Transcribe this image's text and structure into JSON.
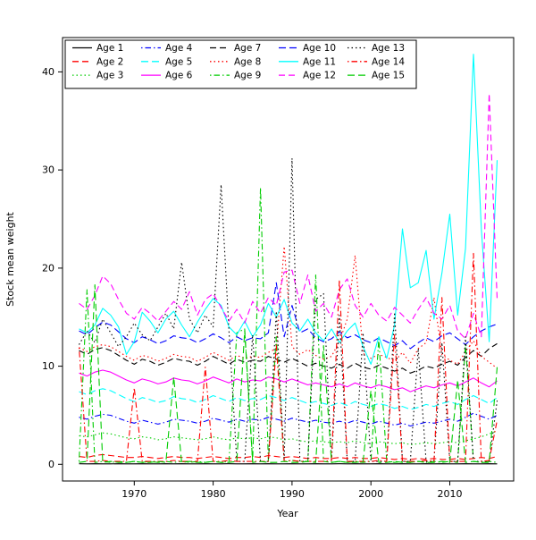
{
  "chart_data": {
    "type": "line",
    "title": "",
    "xlabel": "Year",
    "ylabel": "Stock mean weight",
    "xlim": [
      1960.9,
      2018.1
    ],
    "ylim": [
      -1.7,
      43.5
    ],
    "x_ticks": [
      1970,
      1980,
      1990,
      2000,
      2010
    ],
    "y_ticks": [
      0,
      10,
      20,
      30,
      40
    ],
    "grid": false,
    "legend_position": "top-left",
    "legend_columns": 5,
    "years": [
      1963,
      1964,
      1965,
      1966,
      1967,
      1968,
      1969,
      1970,
      1971,
      1972,
      1973,
      1974,
      1975,
      1976,
      1977,
      1978,
      1979,
      1980,
      1981,
      1982,
      1983,
      1984,
      1985,
      1986,
      1987,
      1988,
      1989,
      1990,
      1991,
      1992,
      1993,
      1994,
      1995,
      1996,
      1997,
      1998,
      1999,
      2000,
      2001,
      2002,
      2003,
      2004,
      2005,
      2006,
      2007,
      2008,
      2009,
      2010,
      2011,
      2012,
      2013,
      2014,
      2015,
      2016
    ],
    "series": [
      {
        "name": "Age 1",
        "color": "#000000",
        "linestyle": "solid",
        "values": [
          0.06,
          0.05,
          0.06,
          0.05,
          0.05,
          0.06,
          0.05,
          0.05,
          0.06,
          0.05,
          0.05,
          0.06,
          0.05,
          0.06,
          0.05,
          0.05,
          0.06,
          0.05,
          0.05,
          0.06,
          0.05,
          0.05,
          0.06,
          0.05,
          0.06,
          0.05,
          0.05,
          0.06,
          0.05,
          0.05,
          0.06,
          0.05,
          0.05,
          0.06,
          0.05,
          0.06,
          0.05,
          0.05,
          0.06,
          0.05,
          0.05,
          0.06,
          0.05,
          0.05,
          0.06,
          0.05,
          0.06,
          0.05,
          0.05,
          0.06,
          0.05,
          0.05,
          0.06,
          0.05
        ]
      },
      {
        "name": "Age 2",
        "color": "#FF0000",
        "linestyle": "dashed",
        "values": [
          0.8,
          0.7,
          0.9,
          1.0,
          0.9,
          0.8,
          0.7,
          0.7,
          0.8,
          0.7,
          0.6,
          0.7,
          0.8,
          0.7,
          0.7,
          0.6,
          0.7,
          0.8,
          0.7,
          0.6,
          0.7,
          0.7,
          0.8,
          0.7,
          0.9,
          0.8,
          0.7,
          0.8,
          0.7,
          0.6,
          0.7,
          0.6,
          0.6,
          0.7,
          0.6,
          0.7,
          0.6,
          0.6,
          0.7,
          0.6,
          0.5,
          0.6,
          0.5,
          0.6,
          0.5,
          0.6,
          0.5,
          0.5,
          0.6,
          0.5,
          0.6,
          0.7,
          0.6,
          0.8
        ]
      },
      {
        "name": "Age 3",
        "color": "#00CC00",
        "linestyle": "dotted",
        "values": [
          2.9,
          2.8,
          3.0,
          3.2,
          3.1,
          2.9,
          2.7,
          2.6,
          2.8,
          2.7,
          2.5,
          2.6,
          2.8,
          2.7,
          2.6,
          2.5,
          2.6,
          2.8,
          2.6,
          2.5,
          2.7,
          2.6,
          2.7,
          2.6,
          2.8,
          2.7,
          2.5,
          2.6,
          2.4,
          2.3,
          2.4,
          2.3,
          2.2,
          2.3,
          2.2,
          2.4,
          2.2,
          2.1,
          2.3,
          2.2,
          2.1,
          2.2,
          2.0,
          2.1,
          2.2,
          2.1,
          2.2,
          2.3,
          2.2,
          2.4,
          2.6,
          2.8,
          3.1,
          3.4
        ]
      },
      {
        "name": "Age 4",
        "color": "#0000FF",
        "linestyle": "dashdot",
        "values": [
          4.8,
          4.6,
          4.9,
          5.1,
          5.0,
          4.7,
          4.4,
          4.2,
          4.5,
          4.3,
          4.1,
          4.3,
          4.6,
          4.5,
          4.4,
          4.2,
          4.4,
          4.7,
          4.5,
          4.3,
          4.6,
          4.4,
          4.6,
          4.5,
          4.8,
          4.6,
          4.4,
          4.7,
          4.5,
          4.3,
          4.5,
          4.3,
          4.2,
          4.4,
          4.2,
          4.5,
          4.3,
          4.1,
          4.4,
          4.2,
          4.0,
          4.2,
          3.9,
          4.1,
          4.3,
          4.2,
          4.4,
          4.6,
          4.4,
          4.8,
          5.2,
          4.9,
          4.6,
          5.0
        ]
      },
      {
        "name": "Age 5",
        "color": "#00FFFF",
        "linestyle": "longdash",
        "values": [
          7.4,
          7.1,
          7.5,
          7.7,
          7.5,
          7.1,
          6.7,
          6.4,
          6.8,
          6.6,
          6.3,
          6.5,
          6.9,
          6.7,
          6.6,
          6.3,
          6.6,
          7.0,
          6.7,
          6.4,
          6.8,
          6.5,
          6.7,
          6.6,
          7.0,
          6.8,
          6.5,
          6.8,
          6.5,
          6.2,
          6.4,
          6.2,
          6.0,
          6.3,
          6.0,
          6.4,
          6.1,
          5.9,
          6.2,
          6.0,
          5.7,
          5.9,
          5.6,
          5.8,
          6.1,
          5.9,
          6.2,
          6.4,
          6.1,
          6.6,
          7.0,
          6.6,
          6.2,
          6.8
        ]
      },
      {
        "name": "Age 6",
        "color": "#FF00FF",
        "linestyle": "solid",
        "values": [
          9.3,
          9.0,
          9.4,
          9.6,
          9.4,
          9.0,
          8.6,
          8.3,
          8.7,
          8.5,
          8.2,
          8.4,
          8.8,
          8.6,
          8.5,
          8.2,
          8.5,
          8.9,
          8.6,
          8.3,
          8.7,
          8.4,
          8.6,
          8.5,
          8.9,
          8.7,
          8.4,
          8.7,
          8.4,
          8.1,
          8.3,
          8.1,
          7.9,
          8.2,
          7.9,
          8.3,
          8.0,
          7.8,
          8.1,
          7.9,
          7.6,
          7.8,
          7.4,
          7.7,
          8.0,
          7.8,
          8.1,
          8.3,
          8.0,
          8.4,
          8.8,
          8.3,
          7.9,
          8.5
        ]
      },
      {
        "name": "Age 7",
        "color": "#000000",
        "linestyle": "dashed",
        "values": [
          11.6,
          11.2,
          11.7,
          11.9,
          11.6,
          11.1,
          10.6,
          10.2,
          10.7,
          10.5,
          10.1,
          10.4,
          10.8,
          10.6,
          10.5,
          10.1,
          10.5,
          11.0,
          10.6,
          10.2,
          10.7,
          10.4,
          10.6,
          10.5,
          11.0,
          10.7,
          10.4,
          10.8,
          10.4,
          10.0,
          10.3,
          10.0,
          9.8,
          10.2,
          9.8,
          10.3,
          9.9,
          9.7,
          10.1,
          9.8,
          9.5,
          9.8,
          9.3,
          9.6,
          10.0,
          9.8,
          10.2,
          10.5,
          10.1,
          10.9,
          11.6,
          11.0,
          11.8,
          12.3
        ]
      },
      {
        "name": "Age 8",
        "color": "#FF0000",
        "linestyle": "dotted",
        "values": [
          11.9,
          11.5,
          12.0,
          12.2,
          12.0,
          11.5,
          11.0,
          10.6,
          11.1,
          10.9,
          10.5,
          10.8,
          11.2,
          11.0,
          10.9,
          10.5,
          10.9,
          11.4,
          11.0,
          10.6,
          11.1,
          10.8,
          11.0,
          10.9,
          11.4,
          11.8,
          22.2,
          12.0,
          11.2,
          11.7,
          11.1,
          10.7,
          11.0,
          12.5,
          14.8,
          21.3,
          11.3,
          10.8,
          11.2,
          10.9,
          10.5,
          11.4,
          10.3,
          11.8,
          12.4,
          17.0,
          11.2,
          10.6,
          10.2,
          11.5,
          12.6,
          11.0,
          10.4,
          9.8
        ]
      },
      {
        "name": "Age 9",
        "color": "#00CC00",
        "linestyle": "dashdot",
        "values": [
          0.3,
          17.8,
          0.2,
          0.3,
          0.2,
          0.3,
          0.2,
          0.3,
          0.2,
          0.3,
          0.2,
          0.3,
          0.2,
          0.3,
          0.2,
          0.3,
          0.2,
          0.3,
          0.2,
          0.3,
          13.4,
          13.8,
          0.3,
          28.2,
          0.3,
          13.0,
          0.3,
          0.4,
          0.3,
          0.3,
          19.3,
          0.3,
          0.2,
          0.3,
          0.2,
          0.3,
          0.2,
          0.3,
          12.8,
          0.3,
          0.2,
          0.3,
          0.2,
          0.3,
          0.2,
          0.3,
          0.2,
          0.3,
          0.2,
          12.2,
          0.3,
          0.2,
          0.3,
          0.2
        ]
      },
      {
        "name": "Age 10",
        "color": "#0000FF",
        "linestyle": "longdash",
        "values": [
          13.6,
          13.2,
          13.9,
          14.5,
          14.2,
          13.5,
          12.8,
          12.4,
          13.0,
          12.7,
          12.3,
          12.6,
          13.1,
          12.9,
          12.8,
          12.4,
          12.8,
          13.3,
          12.9,
          12.4,
          13.0,
          12.6,
          12.9,
          12.8,
          13.4,
          18.5,
          13.0,
          16.2,
          13.4,
          13.8,
          12.9,
          12.5,
          12.8,
          13.5,
          12.9,
          13.2,
          12.7,
          12.4,
          12.9,
          12.5,
          12.1,
          12.6,
          11.8,
          12.4,
          12.9,
          12.5,
          13.1,
          13.4,
          12.8,
          12.2,
          13.0,
          13.6,
          14.0,
          14.3
        ]
      },
      {
        "name": "Age 11",
        "color": "#00FFFF",
        "linestyle": "solid",
        "values": [
          13.8,
          13.4,
          14.2,
          15.9,
          15.2,
          14.0,
          11.2,
          12.5,
          15.5,
          14.6,
          13.4,
          14.8,
          15.6,
          14.2,
          13.0,
          14.5,
          15.8,
          16.9,
          16.2,
          14.0,
          13.2,
          14.6,
          13.0,
          14.2,
          16.4,
          15.0,
          16.8,
          14.4,
          13.6,
          14.8,
          13.4,
          12.6,
          13.8,
          12.4,
          13.6,
          14.4,
          12.0,
          10.2,
          13.0,
          10.8,
          14.2,
          24.0,
          18.0,
          18.5,
          21.8,
          14.8,
          19.5,
          25.5,
          15.2,
          22.0,
          41.8,
          24.0,
          12.5,
          31.0
        ]
      },
      {
        "name": "Age 12",
        "color": "#FF00FF",
        "linestyle": "dashed",
        "values": [
          16.4,
          15.8,
          17.2,
          19.2,
          18.4,
          16.8,
          15.4,
          14.8,
          16.0,
          15.4,
          14.6,
          15.6,
          16.6,
          15.8,
          17.6,
          15.2,
          16.8,
          17.4,
          16.0,
          14.6,
          15.8,
          14.4,
          16.6,
          15.4,
          17.0,
          16.2,
          19.6,
          19.8,
          16.4,
          19.3,
          15.6,
          16.4,
          15.0,
          17.8,
          18.9,
          16.2,
          15.0,
          16.4,
          15.2,
          14.6,
          16.0,
          15.2,
          14.4,
          15.8,
          17.0,
          15.4,
          14.8,
          16.2,
          13.6,
          12.8,
          15.4,
          13.0,
          37.8,
          16.8
        ]
      },
      {
        "name": "Age 13",
        "color": "#000000",
        "linestyle": "dotted",
        "values": [
          12.2,
          13.6,
          12.4,
          14.8,
          13.4,
          12.0,
          13.0,
          14.4,
          13.2,
          12.6,
          14.0,
          15.4,
          13.8,
          20.6,
          14.8,
          13.4,
          15.2,
          14.0,
          28.5,
          13.6,
          0.3,
          0.3,
          13.2,
          0.3,
          0.3,
          15.6,
          0.4,
          31.2,
          0.3,
          0.3,
          16.8,
          17.4,
          0.3,
          15.2,
          0.3,
          0.3,
          13.4,
          0.3,
          0.3,
          0.3,
          15.5,
          0.3,
          0.3,
          11.8,
          0.3,
          0.3,
          12.4,
          0.3,
          0.3,
          13.0,
          0.3,
          0.3,
          0.3,
          6.5
        ]
      },
      {
        "name": "Age 14",
        "color": "#FF0000",
        "linestyle": "dashdot",
        "values": [
          11.9,
          0.3,
          0.3,
          0.4,
          0.3,
          0.3,
          0.3,
          7.8,
          0.3,
          0.3,
          0.3,
          0.3,
          0.4,
          0.3,
          0.3,
          0.3,
          9.9,
          0.3,
          0.3,
          0.4,
          0.3,
          0.3,
          0.3,
          0.3,
          0.3,
          12.1,
          0.3,
          0.4,
          0.3,
          0.3,
          0.3,
          0.3,
          0.4,
          18.8,
          0.3,
          0.3,
          0.3,
          0.3,
          0.4,
          0.3,
          13.2,
          0.3,
          0.3,
          0.3,
          0.4,
          0.3,
          17.0,
          0.3,
          0.3,
          0.3,
          21.5,
          0.3,
          0.4,
          4.5
        ]
      },
      {
        "name": "Age 15",
        "color": "#00CC00",
        "linestyle": "longdash",
        "values": [
          0.2,
          0.3,
          18.3,
          0.2,
          0.3,
          0.2,
          0.2,
          0.3,
          0.2,
          0.2,
          0.3,
          0.2,
          8.9,
          0.2,
          0.3,
          0.2,
          0.2,
          0.3,
          0.2,
          0.2,
          0.3,
          13.6,
          0.2,
          0.3,
          0.2,
          0.2,
          0.3,
          0.2,
          0.2,
          0.3,
          0.2,
          12.1,
          0.2,
          0.3,
          0.2,
          0.2,
          0.3,
          7.5,
          0.2,
          0.2,
          0.3,
          0.2,
          0.2,
          0.3,
          0.2,
          0.2,
          0.3,
          0.2,
          8.6,
          0.2,
          0.3,
          0.2,
          0.2,
          9.9
        ]
      }
    ]
  }
}
